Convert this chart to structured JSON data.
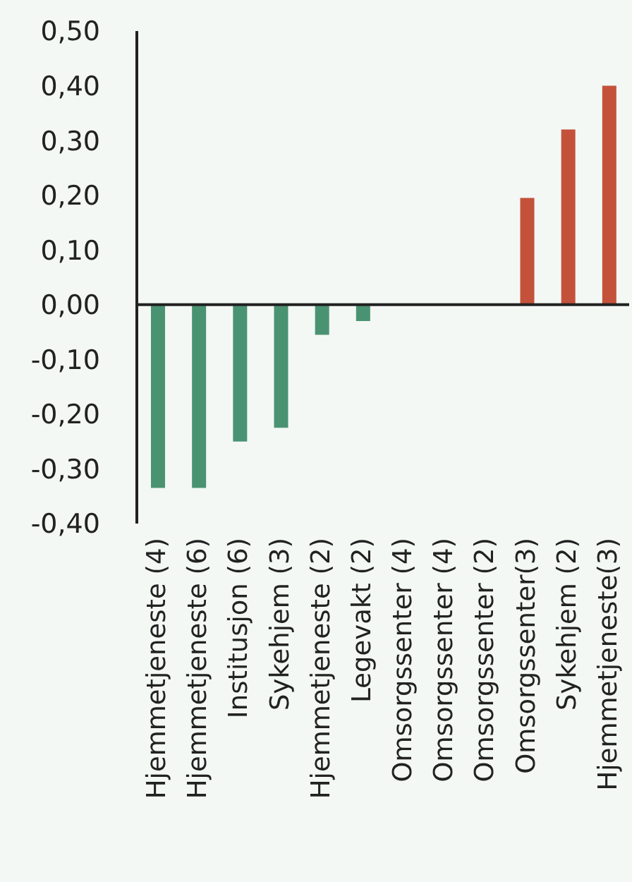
{
  "chart_data": {
    "type": "bar",
    "categories": [
      "Hjemmetjeneste (4)",
      "Hjemmetjeneste (6)",
      "Institusjon (6)",
      "Sykehjem (3)",
      "Hjemmetjeneste (2)",
      "Legevakt (2)",
      "Omsorgssenter (4)",
      "Omsorgssenter (4)",
      "Omsorgssenter (2)",
      "Omsorgssenter(3)",
      "Sykehjem (2)",
      "Hjemmetjeneste(3)"
    ],
    "values": [
      -0.335,
      -0.335,
      -0.25,
      -0.225,
      -0.055,
      -0.03,
      0,
      0,
      0,
      0.195,
      0.32,
      0.4
    ],
    "colors": [
      "#4a9372",
      "#4a9372",
      "#4a9372",
      "#4a9372",
      "#4a9372",
      "#4a9372",
      "#4a9372",
      "#4a9372",
      "#4a9372",
      "#c4523a",
      "#c4523a",
      "#c4523a"
    ],
    "ylim": [
      -0.4,
      0.5
    ],
    "yticks": [
      {
        "value": -0.4,
        "label": "-0,40"
      },
      {
        "value": -0.3,
        "label": "-0,30"
      },
      {
        "value": -0.2,
        "label": "-0,20"
      },
      {
        "value": -0.1,
        "label": "-0,10"
      },
      {
        "value": 0,
        "label": "0,00"
      },
      {
        "value": 0.1,
        "label": "0,10"
      },
      {
        "value": 0.2,
        "label": "0,20"
      },
      {
        "value": 0.3,
        "label": "0,30"
      },
      {
        "value": 0.4,
        "label": "0,40"
      },
      {
        "value": 0.5,
        "label": "0,50"
      }
    ],
    "ref_lines": [
      {
        "axis": "y",
        "value": 0,
        "color": "#222222"
      }
    ],
    "grid": false
  }
}
